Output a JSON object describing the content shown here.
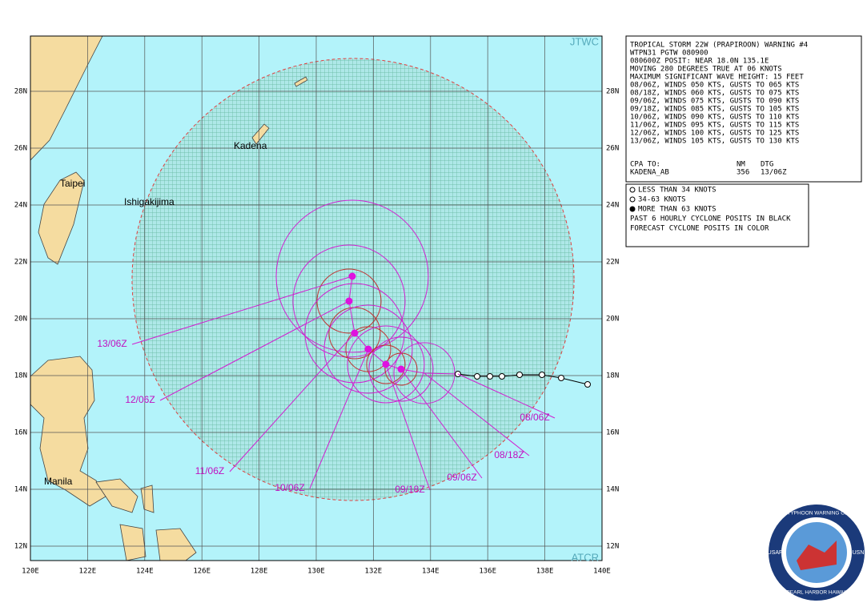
{
  "map": {
    "corner_labels": {
      "top": "JTWC",
      "bottom": "ATCR"
    },
    "lat_labels": [
      "28N",
      "26N",
      "24N",
      "22N",
      "20N",
      "18N",
      "16N",
      "14N",
      "12N"
    ],
    "lon_labels": [
      "120E",
      "122E",
      "124E",
      "126E",
      "128E",
      "130E",
      "132E",
      "134E",
      "136E",
      "138E",
      "140E"
    ],
    "places": [
      "Taipei",
      "Ishigakijima",
      "Kadena",
      "Manila"
    ],
    "track_labels": [
      "13/06Z",
      "12/06Z",
      "11/06Z",
      "10/06Z",
      "09/18Z",
      "09/06Z",
      "08/18Z",
      "08/06Z"
    ]
  },
  "warning": {
    "lines": [
      "TROPICAL STORM 22W (PRAPIROON) WARNING #4",
      "WTPN31 PGTW 080900",
      "080600Z POSIT: NEAR 18.0N 135.1E",
      "MOVING 280 DEGREES TRUE AT 06 KNOTS",
      "MAXIMUM SIGNIFICANT WAVE HEIGHT: 15 FEET",
      "08/06Z, WINDS 050 KTS, GUSTS TO 065 KTS",
      "08/18Z, WINDS 060 KTS, GUSTS TO 075 KTS",
      "09/06Z, WINDS 075 KTS, GUSTS TO 090 KTS",
      "09/18Z, WINDS 085 KTS, GUSTS TO 105 KTS",
      "10/06Z, WINDS 090 KTS, GUSTS TO 110 KTS",
      "11/06Z, WINDS 095 KTS, GUSTS TO 115 KTS",
      "12/06Z, WINDS 100 KTS, GUSTS TO 125 KTS",
      "13/06Z, WINDS 105 KTS, GUSTS TO 130 KTS"
    ],
    "cpa": {
      "header": [
        "CPA TO:",
        "NM",
        "DTG"
      ],
      "row": [
        "KADENA_AB",
        "356",
        "13/06Z"
      ]
    }
  },
  "legend": {
    "lines": [
      "LESS THAN 34 KNOTS",
      "34-63 KNOTS",
      "MORE THAN 63 KNOTS",
      "PAST 6 HOURLY CYCLONE POSITS IN BLACK",
      "FORECAST CYCLONE POSITS IN COLOR"
    ]
  },
  "seal": {
    "texts": [
      "JOINT TYPHOON WARNING CENTER",
      "PEARL HARBOR HAWAII",
      "USAF",
      "USN"
    ]
  }
}
